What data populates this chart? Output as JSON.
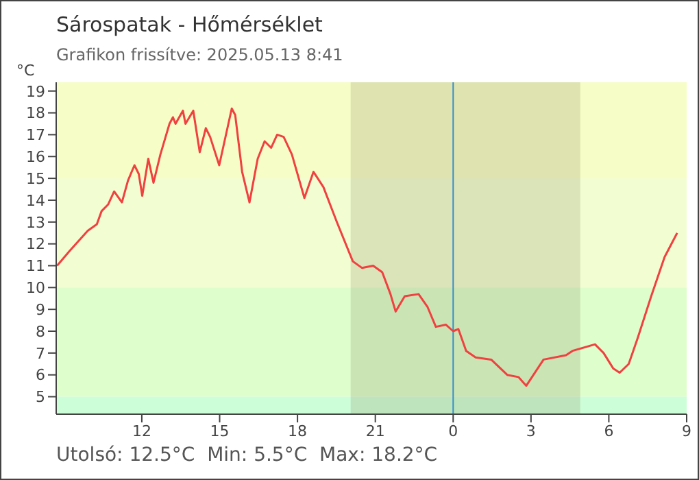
{
  "chart_data": {
    "type": "line",
    "title": "Sárospatak - Hőmérséklet",
    "subtitle": "Grafikon frissítve: 2025.05.13 8:41",
    "ylabel": "°C",
    "annotations": [
      "Utolsó: 12.5°C  Min: 5.5°C  Max: 18.2°C"
    ],
    "x": [
      "2025-05-12T08:44",
      "2025-05-12T09:14",
      "2025-05-12T09:55",
      "2025-05-12T10:16",
      "2025-05-12T10:27",
      "2025-05-12T10:42",
      "2025-05-12T10:56",
      "2025-05-12T11:14",
      "2025-05-12T11:28",
      "2025-05-12T11:43",
      "2025-05-12T11:53",
      "2025-05-12T12:01",
      "2025-05-12T12:15",
      "2025-05-12T12:27",
      "2025-05-12T12:43",
      "2025-05-12T13:04",
      "2025-05-12T13:12",
      "2025-05-12T13:18",
      "2025-05-12T13:35",
      "2025-05-12T13:41",
      "2025-05-12T13:59",
      "2025-05-12T14:14",
      "2025-05-12T14:28",
      "2025-05-12T14:38",
      "2025-05-12T14:59",
      "2025-05-12T15:28",
      "2025-05-12T15:36",
      "2025-05-12T15:52",
      "2025-05-12T16:09",
      "2025-05-12T16:28",
      "2025-05-12T16:44",
      "2025-05-12T16:59",
      "2025-05-12T17:13",
      "2025-05-12T17:28",
      "2025-05-12T17:47",
      "2025-05-12T18:16",
      "2025-05-12T18:37",
      "2025-05-12T19:00",
      "2025-05-12T19:31",
      "2025-05-12T20:08",
      "2025-05-12T20:29",
      "2025-05-12T20:55",
      "2025-05-12T21:16",
      "2025-05-12T21:35",
      "2025-05-12T21:47",
      "2025-05-12T22:08",
      "2025-05-12T22:40",
      "2025-05-12T23:01",
      "2025-05-12T23:20",
      "2025-05-12T23:43",
      "2025-05-13T00:00",
      "2025-05-13T00:12",
      "2025-05-13T00:30",
      "2025-05-13T00:52",
      "2025-05-13T01:28",
      "2025-05-13T02:05",
      "2025-05-13T02:31",
      "2025-05-13T02:49",
      "2025-05-13T03:29",
      "2025-05-13T04:21",
      "2025-05-13T04:36",
      "2025-05-13T05:28",
      "2025-05-13T05:48",
      "2025-05-13T06:10",
      "2025-05-13T06:25",
      "2025-05-13T06:46",
      "2025-05-13T07:07",
      "2025-05-13T07:38",
      "2025-05-13T08:09",
      "2025-05-13T08:38"
    ],
    "series": [
      {
        "color": "#f04040",
        "values": [
          11.0,
          11.7,
          12.6,
          12.9,
          13.5,
          13.8,
          14.4,
          13.9,
          14.9,
          15.6,
          15.2,
          14.2,
          15.9,
          14.8,
          16.1,
          17.5,
          17.8,
          17.5,
          18.1,
          17.5,
          18.1,
          16.2,
          17.3,
          16.9,
          15.6,
          18.2,
          17.9,
          15.3,
          13.9,
          15.9,
          16.7,
          16.4,
          17.0,
          16.9,
          16.1,
          14.1,
          15.3,
          14.6,
          13.0,
          11.2,
          10.9,
          11.0,
          10.7,
          9.7,
          8.9,
          9.6,
          9.7,
          9.1,
          8.2,
          8.3,
          8.0,
          8.1,
          7.1,
          6.8,
          6.7,
          6.0,
          5.9,
          5.5,
          6.7,
          6.9,
          7.1,
          7.4,
          7.0,
          6.3,
          6.1,
          6.5,
          7.7,
          9.6,
          11.4,
          12.5
        ]
      }
    ],
    "xlim": [
      "2025-05-12T08:42",
      "2025-05-13T09:00"
    ],
    "xticks": [
      {
        "value": "2025-05-12T12:00",
        "label": "12"
      },
      {
        "value": "2025-05-12T15:00",
        "label": "15"
      },
      {
        "value": "2025-05-12T18:00",
        "label": "18"
      },
      {
        "value": "2025-05-12T21:00",
        "label": "21"
      },
      {
        "value": "2025-05-13T00:00",
        "label": "0"
      },
      {
        "value": "2025-05-13T03:00",
        "label": "3"
      },
      {
        "value": "2025-05-13T06:00",
        "label": "6"
      },
      {
        "value": "2025-05-13T09:00",
        "label": "9"
      }
    ],
    "ylim": [
      4.2,
      19.4
    ],
    "yticks": [
      5,
      6,
      7,
      8,
      9,
      10,
      11,
      12,
      13,
      14,
      15,
      16,
      17,
      18,
      19
    ],
    "bands": [
      {
        "axis": "y",
        "from": 15,
        "to": 19.4,
        "color": "#f6fdc6"
      },
      {
        "axis": "y",
        "from": 10,
        "to": 15,
        "color": "#f2fdd2"
      },
      {
        "axis": "y",
        "from": 5,
        "to": 10,
        "color": "#defecc"
      },
      {
        "axis": "y",
        "from": 4.2,
        "to": 5,
        "color": "#ccfed8"
      },
      {
        "axis": "x",
        "from": "2025-05-12T20:03",
        "to": "2025-05-13T04:54",
        "color": "#8a8a60"
      }
    ],
    "ref_lines": [
      {
        "axis": "x",
        "value": "2025-05-13T00:00",
        "color": "#3a8fc8"
      }
    ],
    "grid": false,
    "marker": "none",
    "line_style": "solid"
  }
}
